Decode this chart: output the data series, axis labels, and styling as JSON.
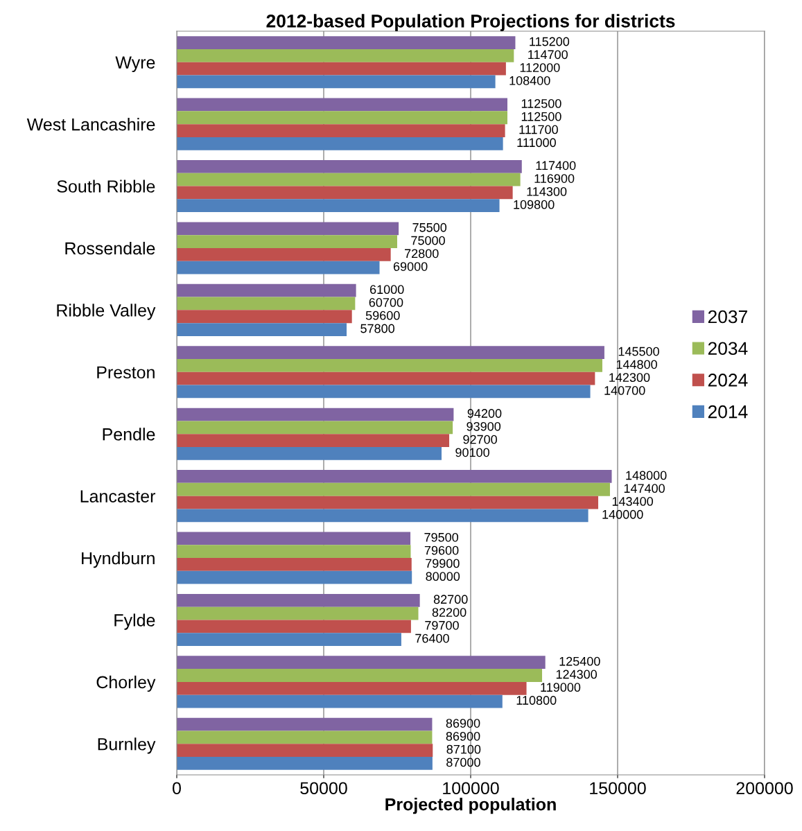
{
  "chart_data": {
    "type": "bar",
    "orientation": "horizontal",
    "title": "2012-based Population Projections for districts",
    "xlabel": "Projected population",
    "categories": [
      "Wyre",
      "West Lancashire",
      "South Ribble",
      "Rossendale",
      "Ribble Valley",
      "Preston",
      "Pendle",
      "Lancaster",
      "Hyndburn",
      "Fylde",
      "Chorley",
      "Burnley"
    ],
    "series": [
      {
        "name": "2037",
        "color": "#8064a2",
        "values": [
          115200,
          112500,
          117400,
          75500,
          61000,
          145500,
          94200,
          148000,
          79500,
          82700,
          125400,
          86900
        ]
      },
      {
        "name": "2034",
        "color": "#9bbb59",
        "values": [
          114700,
          112500,
          116900,
          75000,
          60700,
          144800,
          93900,
          147400,
          79600,
          82200,
          124300,
          86900
        ]
      },
      {
        "name": "2024",
        "color": "#c0504d",
        "values": [
          112000,
          111700,
          114300,
          72800,
          59600,
          142300,
          92700,
          143400,
          79900,
          79700,
          119000,
          87100
        ]
      },
      {
        "name": "2014",
        "color": "#4f81bd",
        "values": [
          108400,
          111000,
          109800,
          69000,
          57800,
          140700,
          90100,
          140000,
          80000,
          76400,
          110800,
          87000
        ]
      }
    ],
    "xlim": [
      0,
      200000
    ],
    "xticks": [
      0,
      50000,
      100000,
      150000,
      200000
    ],
    "grid": "x",
    "legend": "right",
    "data_labels": true
  }
}
